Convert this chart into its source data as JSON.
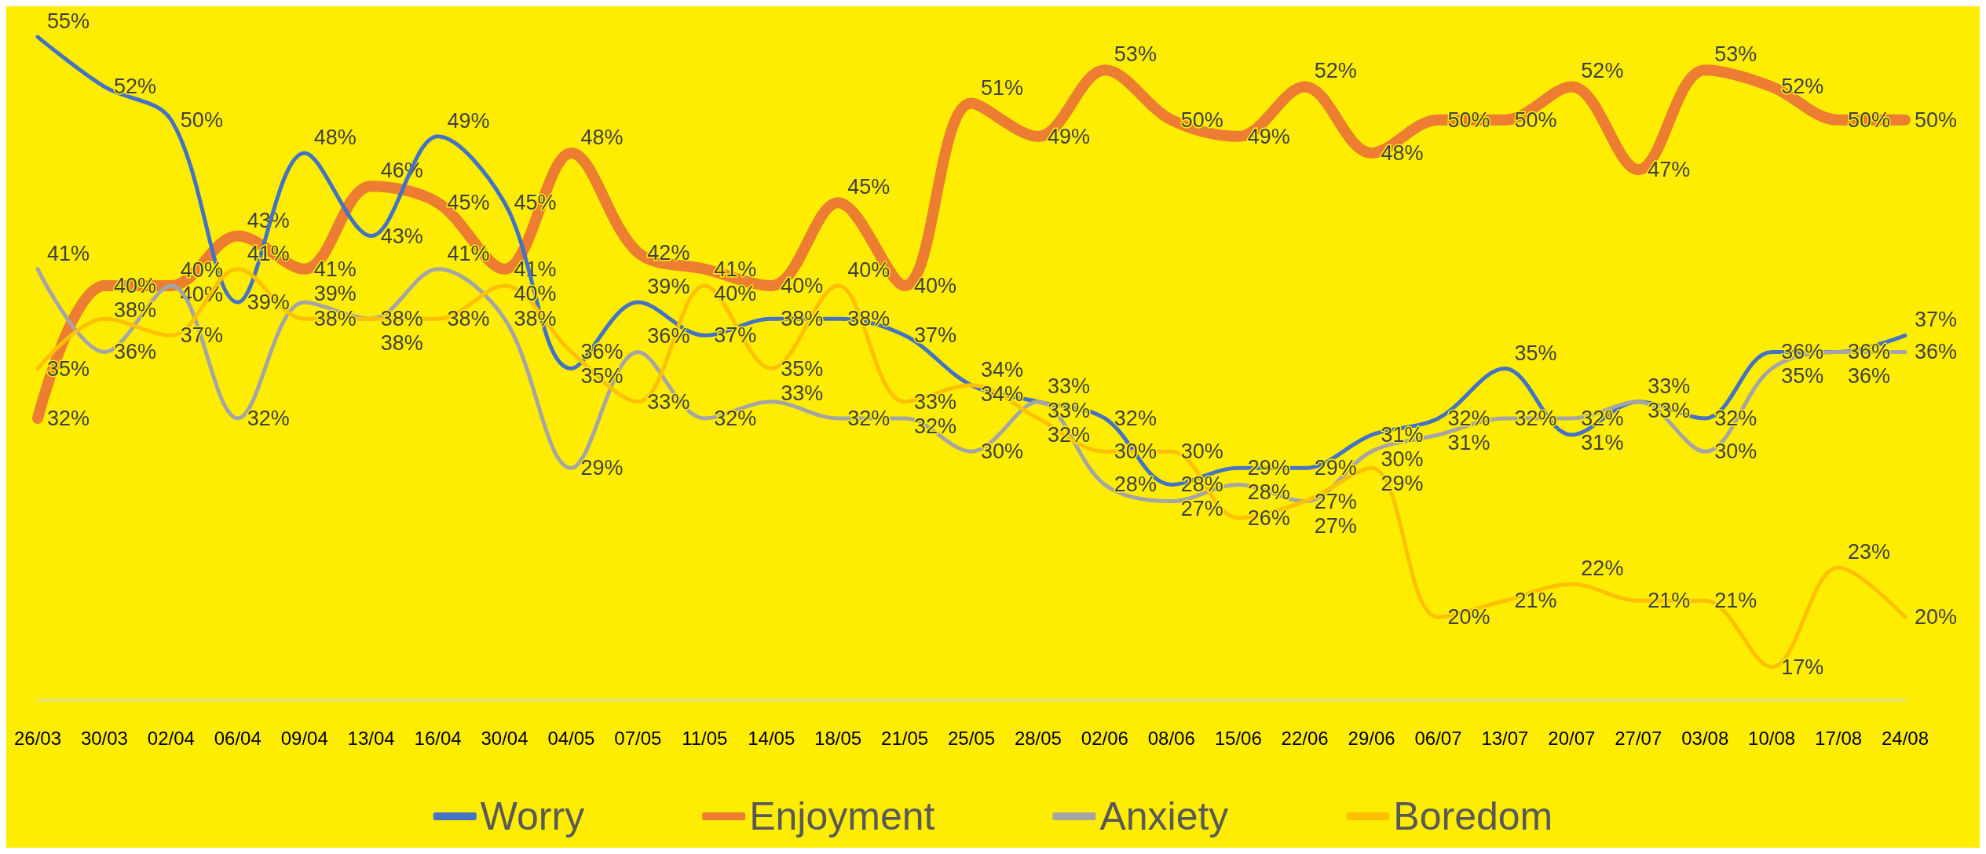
{
  "chart_data": {
    "type": "line",
    "categories": [
      "26/03",
      "30/03",
      "02/04",
      "06/04",
      "09/04",
      "13/04",
      "16/04",
      "30/04",
      "04/05",
      "07/05",
      "11/05",
      "14/05",
      "18/05",
      "21/05",
      "25/05",
      "28/05",
      "02/06",
      "08/06",
      "15/06",
      "22/06",
      "29/06",
      "06/07",
      "13/07",
      "20/07",
      "27/07",
      "03/08",
      "10/08",
      "17/08",
      "24/08"
    ],
    "grid": false,
    "legend": "bottom",
    "marker": "none",
    "line_style": "solid",
    "tick_labels": "x",
    "series": [
      {
        "name": "Worry",
        "color": "#4472c4",
        "values": [
          55,
          52,
          50,
          39,
          48,
          43,
          49,
          45,
          35,
          39,
          37,
          38,
          38,
          37,
          34,
          33,
          32,
          28,
          29,
          29,
          31,
          32,
          35,
          31,
          33,
          32,
          36,
          36,
          37
        ],
        "value_labels": [
          "55%",
          "52%",
          "50%",
          "39%",
          "48%",
          "43%",
          "49%",
          "45%",
          "35%",
          "39%",
          "37%",
          "38%",
          "38%",
          "37%",
          "34%",
          "33%",
          "32%",
          "28%",
          "29%",
          "29%",
          "31%",
          "32%",
          "35%",
          "31%",
          "33%",
          "32%",
          "36%",
          "36%",
          "37%"
        ]
      },
      {
        "name": "Enjoyment",
        "color": "#ed7d31",
        "values": [
          32,
          40,
          40,
          43,
          41,
          46,
          45,
          41,
          48,
          42,
          41,
          40,
          45,
          40,
          51,
          49,
          53,
          50,
          49,
          52,
          48,
          50,
          50,
          52,
          47,
          53,
          52,
          50,
          50
        ],
        "value_labels": [
          "32%",
          "40%",
          "40%",
          "43%",
          "41%",
          "46%",
          "45%",
          "41%",
          "48%",
          "42%",
          "41%",
          "40%",
          "45%",
          "40%",
          "51%",
          "49%",
          "53%",
          "50%",
          "49%",
          "52%",
          "48%",
          "50%",
          "50%",
          "52%",
          "47%",
          "53%",
          "52%",
          "50%",
          "50%"
        ]
      },
      {
        "name": "Anxiety",
        "color": "#a5a5a5",
        "values": [
          41,
          36,
          40,
          32,
          39,
          38,
          41,
          38,
          29,
          36,
          32,
          33,
          32,
          32,
          30,
          33,
          28,
          27,
          28,
          27,
          30,
          31,
          32,
          32,
          33,
          30,
          35,
          36,
          36
        ],
        "value_labels": [
          "41%",
          "36%",
          "40%",
          "32%",
          "39%",
          "38%",
          "41%",
          "38%",
          "29%",
          "36%",
          "32%",
          "33%",
          "32%",
          "32%",
          "30%",
          "33%",
          "28%",
          "27%",
          "28%",
          "27%",
          "30%",
          "31%",
          "32%",
          "32%",
          "33%",
          "30%",
          "35%",
          "36%",
          "36%"
        ]
      },
      {
        "name": "Boredom",
        "color": "#ffc000",
        "values": [
          35,
          38,
          37,
          41,
          38,
          38,
          38,
          40,
          36,
          33,
          40,
          35,
          40,
          33,
          34,
          32,
          30,
          30,
          26,
          27,
          29,
          20,
          21,
          22,
          21,
          21,
          17,
          23,
          20
        ],
        "value_labels": [
          "35%",
          "38%",
          "37%",
          "41%",
          "38%",
          "38%",
          "38%",
          "40%",
          "36%",
          "33%",
          "40%",
          "35%",
          "40%",
          "33%",
          "34%",
          "32%",
          "30%",
          "30%",
          "26%",
          "27%",
          "29%",
          "20%",
          "21%",
          "22%",
          "21%",
          "21%",
          "17%",
          "23%",
          "20%"
        ]
      }
    ]
  }
}
